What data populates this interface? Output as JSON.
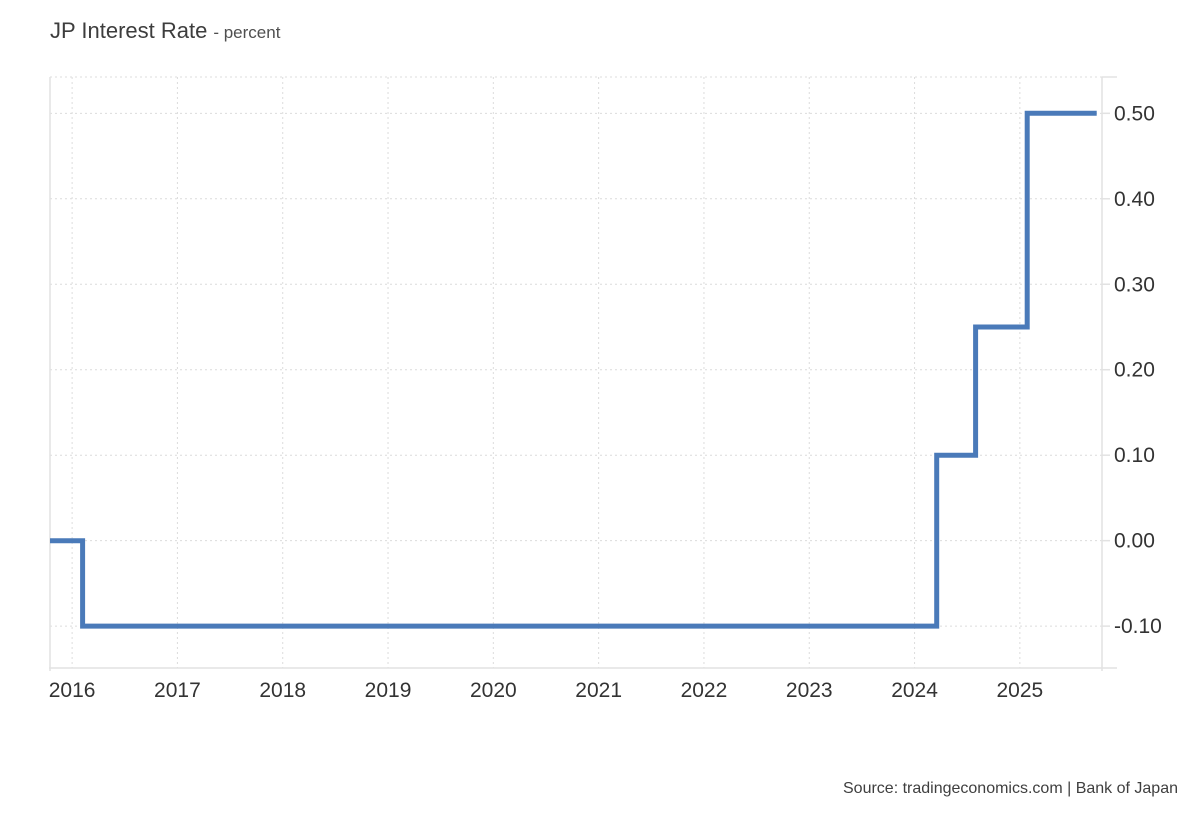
{
  "header": {
    "title": "JP Interest Rate",
    "subtitle": "- percent"
  },
  "footer": {
    "source": "Source: tradingeconomics.com | Bank of Japan"
  },
  "colors": {
    "background": "#ffffff",
    "line": "#4a7ab9",
    "grid": "#dcdcdc",
    "border": "#e2e2e2",
    "axis_text": "#333333",
    "title_text": "#3d3d3d",
    "source_text": "#3f3f3f"
  },
  "chart_data": {
    "type": "line",
    "step": true,
    "title": "JP Interest Rate",
    "subtitle": "percent",
    "xlabel": "",
    "ylabel": "percent",
    "legend": "none",
    "grid": "dotted",
    "xlim": [
      2015.79,
      2025.78
    ],
    "ylim": [
      -0.149,
      0.5425
    ],
    "x_ticks": [
      {
        "value": 2016,
        "label": "2016"
      },
      {
        "value": 2017,
        "label": "2017"
      },
      {
        "value": 2018,
        "label": "2018"
      },
      {
        "value": 2019,
        "label": "2019"
      },
      {
        "value": 2020,
        "label": "2020"
      },
      {
        "value": 2021,
        "label": "2021"
      },
      {
        "value": 2022,
        "label": "2022"
      },
      {
        "value": 2023,
        "label": "2023"
      },
      {
        "value": 2024,
        "label": "2024"
      },
      {
        "value": 2025,
        "label": "2025"
      }
    ],
    "y_ticks": [
      {
        "value": 0.5,
        "label": "0.50"
      },
      {
        "value": 0.4,
        "label": "0.40"
      },
      {
        "value": 0.3,
        "label": "0.30"
      },
      {
        "value": 0.2,
        "label": "0.20"
      },
      {
        "value": 0.1,
        "label": "0.10"
      },
      {
        "value": 0.0,
        "label": "0.00"
      },
      {
        "value": -0.1,
        "label": "-0.10"
      }
    ],
    "series": [
      {
        "name": "JP Interest Rate",
        "color": "#4a7ab9",
        "line_width": 5,
        "step_mode": "after",
        "points": [
          {
            "x": 2015.79,
            "y": 0.0
          },
          {
            "x": 2016.1,
            "y": -0.1
          },
          {
            "x": 2024.21,
            "y": 0.1
          },
          {
            "x": 2024.58,
            "y": 0.25
          },
          {
            "x": 2025.07,
            "y": 0.5
          },
          {
            "x": 2025.73,
            "y": 0.5
          }
        ]
      }
    ]
  }
}
